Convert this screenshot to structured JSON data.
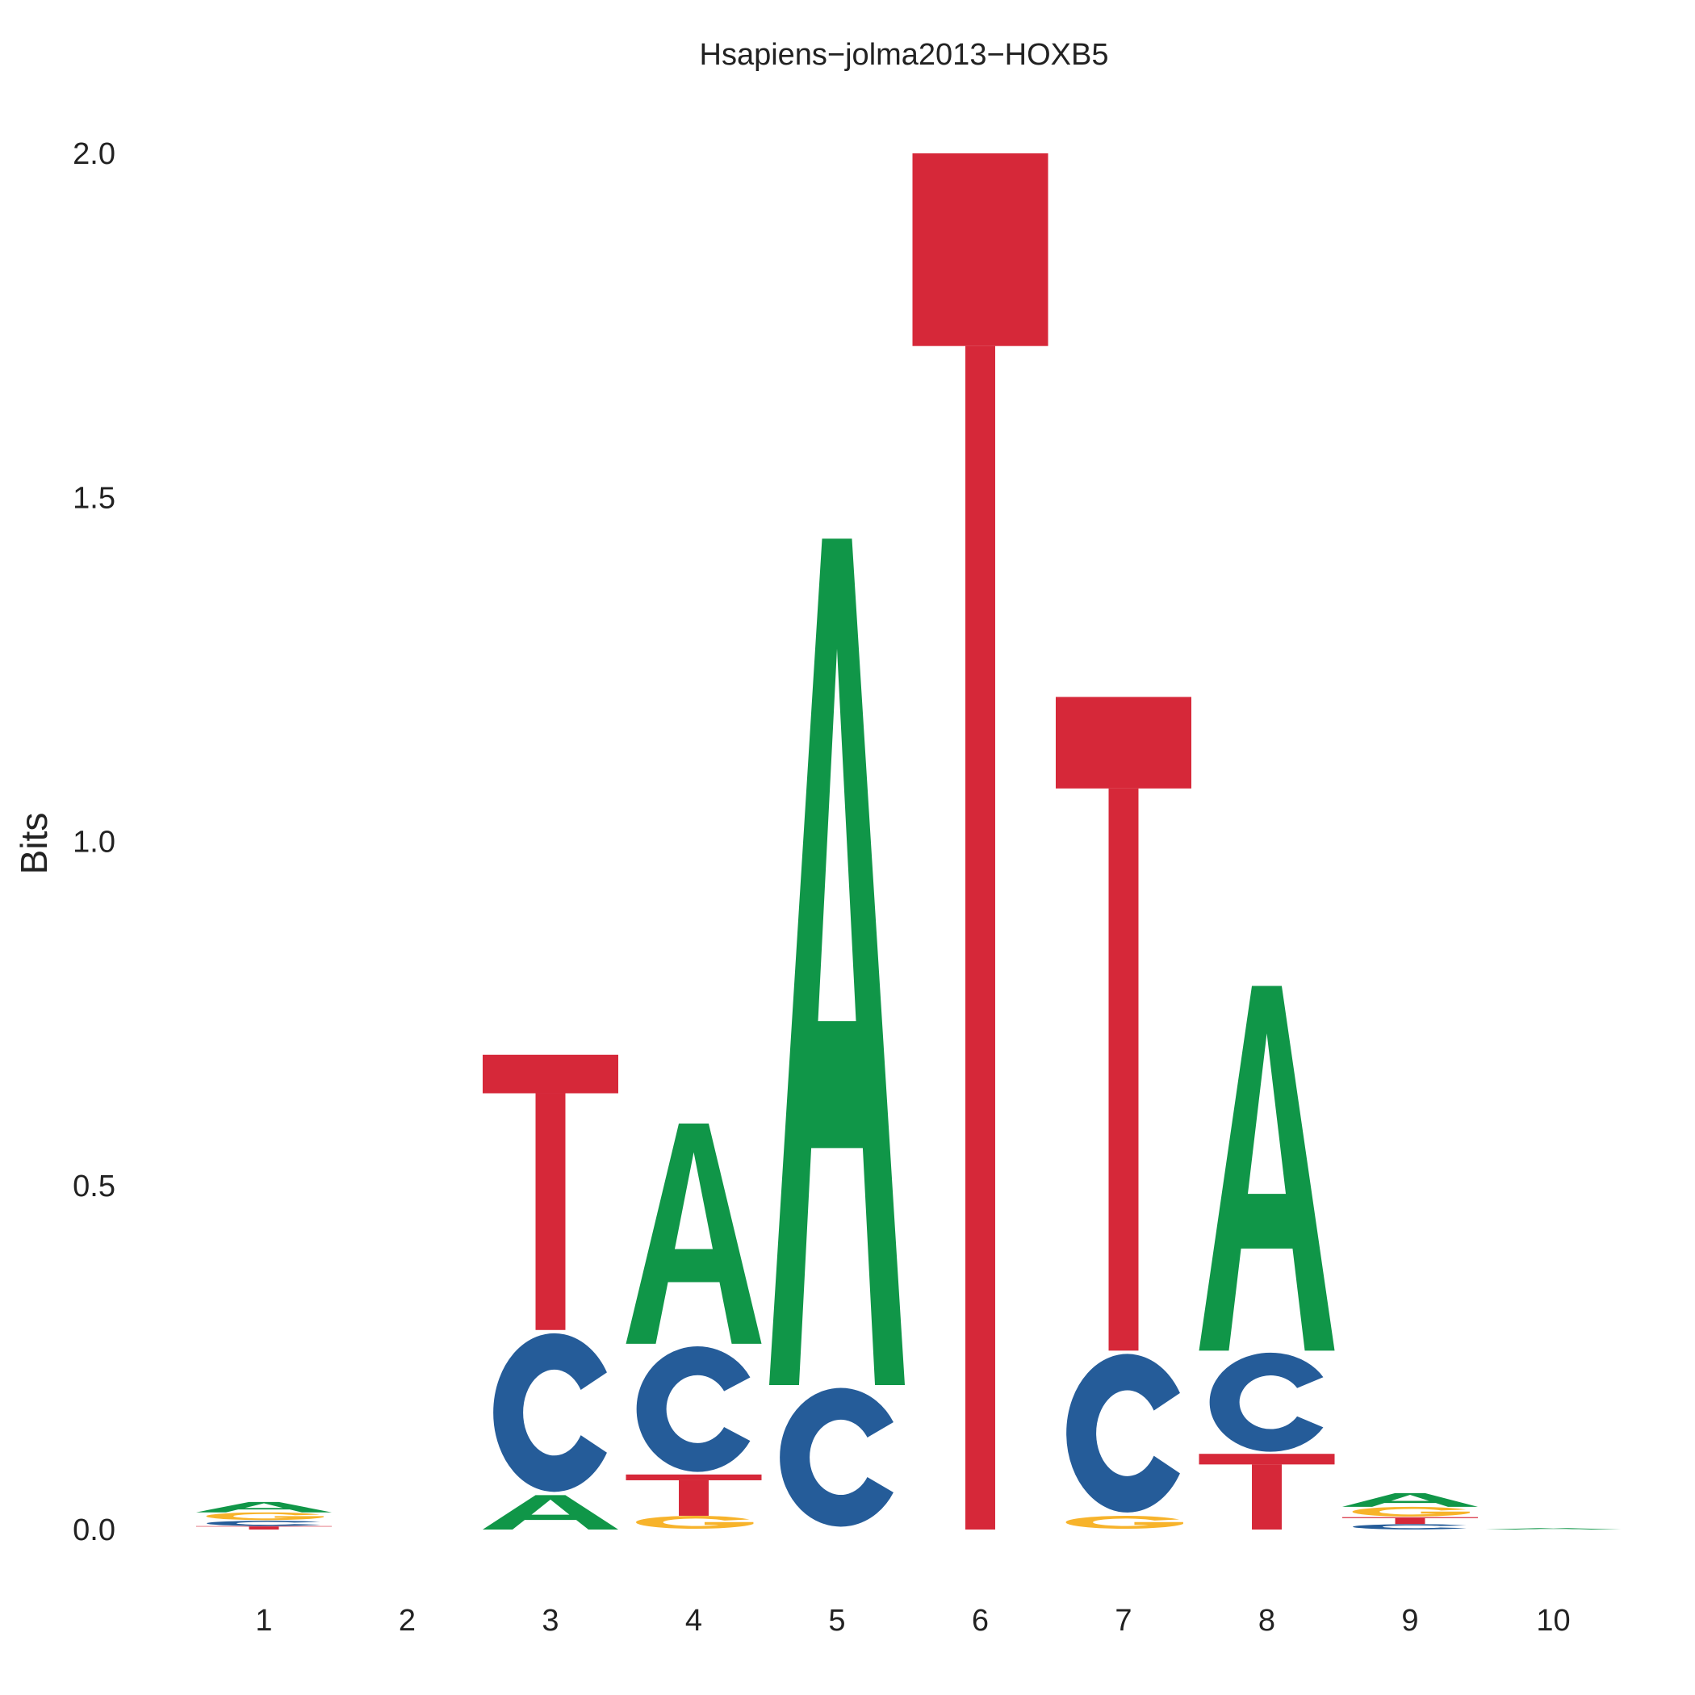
{
  "chart_data": {
    "type": "sequence-logo",
    "title": "Hsapiens−jolma2013−HOXB5",
    "ylabel": "Bits",
    "xlabel": "",
    "ylim": [
      0,
      2
    ],
    "y_ticks": [
      "0.0",
      "0.5",
      "1.0",
      "1.5",
      "2.0"
    ],
    "y_tick_values": [
      0,
      0.5,
      1.0,
      1.5,
      2.0
    ],
    "x_ticks": [
      "1",
      "2",
      "3",
      "4",
      "5",
      "6",
      "7",
      "8",
      "9",
      "10"
    ],
    "colors": {
      "A": "#109648",
      "C": "#255C99",
      "G": "#F7B32B",
      "T": "#D62839"
    },
    "positions": [
      {
        "position": "1",
        "stack": [
          {
            "base": "T",
            "bits": 0.005
          },
          {
            "base": "C",
            "bits": 0.008
          },
          {
            "base": "G",
            "bits": 0.012
          },
          {
            "base": "A",
            "bits": 0.015
          }
        ]
      },
      {
        "position": "2",
        "stack": []
      },
      {
        "position": "3",
        "stack": [
          {
            "base": "A",
            "bits": 0.05
          },
          {
            "base": "C",
            "bits": 0.24
          },
          {
            "base": "T",
            "bits": 0.4
          }
        ]
      },
      {
        "position": "4",
        "stack": [
          {
            "base": "G",
            "bits": 0.02
          },
          {
            "base": "T",
            "bits": 0.06
          },
          {
            "base": "C",
            "bits": 0.19
          },
          {
            "base": "A",
            "bits": 0.32
          }
        ]
      },
      {
        "position": "5",
        "stack": [
          {
            "base": "C",
            "bits": 0.21
          },
          {
            "base": "A",
            "bits": 1.23
          }
        ]
      },
      {
        "position": "6",
        "stack": [
          {
            "base": "T",
            "bits": 2.0
          }
        ]
      },
      {
        "position": "7",
        "stack": [
          {
            "base": "G",
            "bits": 0.02
          },
          {
            "base": "C",
            "bits": 0.24
          },
          {
            "base": "T",
            "bits": 0.95
          }
        ]
      },
      {
        "position": "8",
        "stack": [
          {
            "base": "T",
            "bits": 0.11
          },
          {
            "base": "C",
            "bits": 0.15
          },
          {
            "base": "A",
            "bits": 0.53
          }
        ]
      },
      {
        "position": "9",
        "stack": [
          {
            "base": "C",
            "bits": 0.008
          },
          {
            "base": "T",
            "bits": 0.01
          },
          {
            "base": "G",
            "bits": 0.015
          },
          {
            "base": "A",
            "bits": 0.02
          }
        ]
      },
      {
        "position": "10",
        "stack": [
          {
            "base": "A",
            "bits": 0.002
          }
        ]
      }
    ]
  }
}
